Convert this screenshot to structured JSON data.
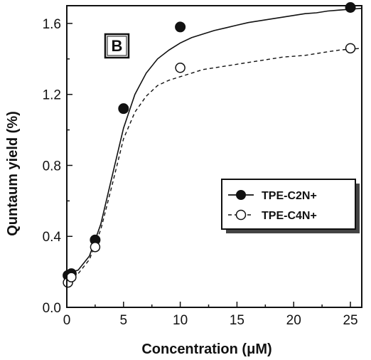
{
  "chart_data": {
    "type": "scatter",
    "panel_label": "B",
    "xlabel_main": "Concentration (",
    "xlabel_unit": "μM",
    "xlabel_close": ")",
    "ylabel": "Quntaum yield (%)",
    "xlim": [
      0,
      26
    ],
    "ylim": [
      0,
      1.7
    ],
    "xticks": [
      "0",
      "5",
      "10",
      "15",
      "20",
      "25"
    ],
    "yticks": [
      "0.0",
      "0.4",
      "0.8",
      "1.2",
      "1.6"
    ],
    "legend_position": "center-right",
    "series": [
      {
        "name": "TPE-C2N+",
        "marker": "filled-circle",
        "line": "solid",
        "x": [
          0.1,
          0.4,
          2.5,
          5,
          10,
          25
        ],
        "y": [
          0.18,
          0.19,
          0.38,
          1.12,
          1.58,
          1.69
        ],
        "fit_x": [
          0,
          1,
          2,
          3,
          4,
          5,
          6,
          7,
          8,
          9,
          10,
          11,
          12,
          13,
          14,
          15,
          16,
          17,
          18,
          19,
          20,
          21,
          22,
          23,
          24,
          25,
          26
        ],
        "fit_y": [
          0.19,
          0.21,
          0.29,
          0.47,
          0.74,
          1.01,
          1.2,
          1.32,
          1.4,
          1.45,
          1.49,
          1.52,
          1.54,
          1.56,
          1.575,
          1.59,
          1.605,
          1.615,
          1.625,
          1.635,
          1.645,
          1.655,
          1.66,
          1.67,
          1.675,
          1.68,
          1.685
        ]
      },
      {
        "name": "TPE-C4N+",
        "marker": "open-circle",
        "line": "dashed",
        "x": [
          0.1,
          0.4,
          2.5,
          10,
          25
        ],
        "y": [
          0.14,
          0.17,
          0.34,
          1.35,
          1.46
        ],
        "fit_x": [
          0,
          1,
          2,
          3,
          4,
          5,
          6,
          7,
          8,
          9,
          10,
          11,
          12,
          13,
          14,
          15,
          16,
          17,
          18,
          19,
          20,
          21,
          22,
          23,
          24,
          25,
          26
        ],
        "fit_y": [
          0.16,
          0.19,
          0.27,
          0.44,
          0.69,
          0.95,
          1.1,
          1.19,
          1.25,
          1.28,
          1.3,
          1.32,
          1.34,
          1.35,
          1.36,
          1.37,
          1.38,
          1.39,
          1.4,
          1.41,
          1.415,
          1.42,
          1.43,
          1.44,
          1.45,
          1.455,
          1.46
        ]
      }
    ]
  }
}
